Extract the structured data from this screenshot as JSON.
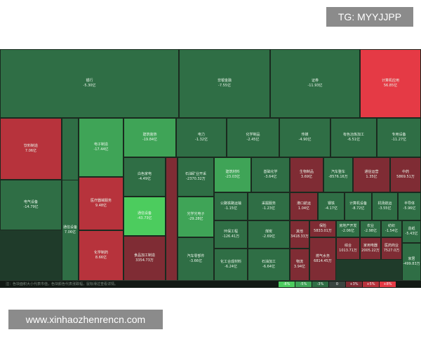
{
  "watermarks": {
    "top": "TG: MYYJJPP",
    "bottom": "www.xinhaozhenrencn.com"
  },
  "colors": {
    "dark_green": "#2f6e45",
    "mid_green": "#35864f",
    "green": "#3fa457",
    "bright_green": "#4ccc5e",
    "dark_red": "#7f2c34",
    "red": "#b7333c",
    "bright_red": "#e53a45"
  },
  "status_bar": {
    "note": "注：色块面积大小代表市值，色块颜色代表涨跌幅，鼠标滑过查看详情。",
    "legend": [
      "-8%",
      "-5%",
      "-3%",
      "0",
      "+3%",
      "+5%",
      "+8%"
    ]
  },
  "cells": [
    {
      "name": "银行",
      "value": "-5.30亿",
      "color": "dark_green"
    },
    {
      "name": "非银金融",
      "value": "-7.55亿",
      "color": "dark_green"
    },
    {
      "name": "证券",
      "value": "-11.93亿",
      "color": "dark_green"
    },
    {
      "name": "计算机应用",
      "value": "56.85亿",
      "color": "bright_red"
    },
    {
      "name": "饮料制造",
      "value": "7.06亿",
      "color": "red"
    },
    {
      "name": "",
      "value": "",
      "color": "dark_green"
    },
    {
      "name": "电子制造",
      "value": "-17.44亿",
      "color": "green"
    },
    {
      "name": "建筑装饰",
      "value": "-19.84亿",
      "color": "green"
    },
    {
      "name": "电力",
      "value": "-1.32亿",
      "color": "dark_green"
    },
    {
      "name": "化学制品",
      "value": "-2.45亿",
      "color": "dark_green"
    },
    {
      "name": "传媒",
      "value": "-4.90亿",
      "color": "dark_green"
    },
    {
      "name": "有色冶炼加工",
      "value": "-6.51亿",
      "color": "dark_green"
    },
    {
      "name": "专用设备",
      "value": "-11.27亿",
      "color": "dark_green"
    },
    {
      "name": "电气设备",
      "value": "-14.79亿",
      "color": "dark_green"
    },
    {
      "name": "通信设备",
      "value": "7.06亿",
      "color": "dark_green"
    },
    {
      "name": "医疗器械服务",
      "value": "9.48亿",
      "color": "red"
    },
    {
      "name": "白色家电",
      "value": "-4.49亿",
      "color": "dark_green"
    },
    {
      "name": "",
      "value": "",
      "color": "dark_red"
    },
    {
      "name": "石油矿业开采",
      "value": "-2370.32万",
      "color": "dark_green"
    },
    {
      "name": "建筑材料",
      "value": "-23.03亿",
      "color": "green"
    },
    {
      "name": "基础化学",
      "value": "-3.64亿",
      "color": "dark_green"
    },
    {
      "name": "生物制品",
      "value": "3.69亿",
      "color": "dark_red"
    },
    {
      "name": "汽车整车",
      "value": "-8576.16万",
      "color": "dark_green"
    },
    {
      "name": "通信运营",
      "value": "1.35亿",
      "color": "dark_red"
    },
    {
      "name": "中药",
      "value": "5869.51万",
      "color": "dark_red"
    },
    {
      "name": "通信设备",
      "value": "-43.73亿",
      "color": "bright_green"
    },
    {
      "name": "光学光电子",
      "value": "-29.28亿",
      "color": "green"
    },
    {
      "name": "公路铁路运输",
      "value": "-1.15亿",
      "color": "dark_green"
    },
    {
      "name": "采掘服务",
      "value": "-1.23亿",
      "color": "dark_green"
    },
    {
      "name": "港口航运",
      "value": "1.04亿",
      "color": "dark_red"
    },
    {
      "name": "钢铁",
      "value": "-4.17亿",
      "color": "dark_green"
    },
    {
      "name": "计算机设备",
      "value": "-8.72亿",
      "color": "dark_green"
    },
    {
      "name": "机场航运",
      "value": "-3.55亿",
      "color": "dark_green"
    },
    {
      "name": "半导体",
      "value": "-5.96亿",
      "color": "dark_green"
    },
    {
      "name": "环保工程",
      "value": "-126.41万",
      "color": "dark_green"
    },
    {
      "name": "煤炭",
      "value": "-2.69亿",
      "color": "dark_green"
    },
    {
      "name": "其他",
      "value": "3418.33万",
      "color": "dark_red"
    },
    {
      "name": "保险",
      "value": "5833.01万",
      "color": "dark_red"
    },
    {
      "name": "房地产开发",
      "value": "-2.06亿",
      "color": "dark_green"
    },
    {
      "name": "农业",
      "value": "-2.98亿",
      "color": "dark_green"
    },
    {
      "name": "纺织",
      "value": "-1.54亿",
      "color": "dark_green"
    },
    {
      "name": "化学制药",
      "value": "8.66亿",
      "color": "red"
    },
    {
      "name": "食品加工制造",
      "value": "3354.73万",
      "color": "dark_red"
    },
    {
      "name": "汽车零部件",
      "value": "-3.66亿",
      "color": "dark_green"
    },
    {
      "name": "化工合成材料",
      "value": "-6.24亿",
      "color": "dark_green"
    },
    {
      "name": "石油加工",
      "value": "-6.64亿",
      "color": "dark_green"
    },
    {
      "name": "物流",
      "value": "3.94亿",
      "color": "dark_red"
    },
    {
      "name": "燃气水务",
      "value": "6814.45万",
      "color": "dark_red"
    },
    {
      "name": "综合",
      "value": "1013.71万",
      "color": "dark_red"
    },
    {
      "name": "家用电器",
      "value": "2005.22万",
      "color": "dark_red"
    },
    {
      "name": "医药商业",
      "value": "7527.0万",
      "color": "dark_red"
    },
    {
      "name": "造纸",
      "value": "-5.43亿",
      "color": "dark_green"
    },
    {
      "name": "家居",
      "value": "-499.83万",
      "color": "dark_green"
    }
  ]
}
